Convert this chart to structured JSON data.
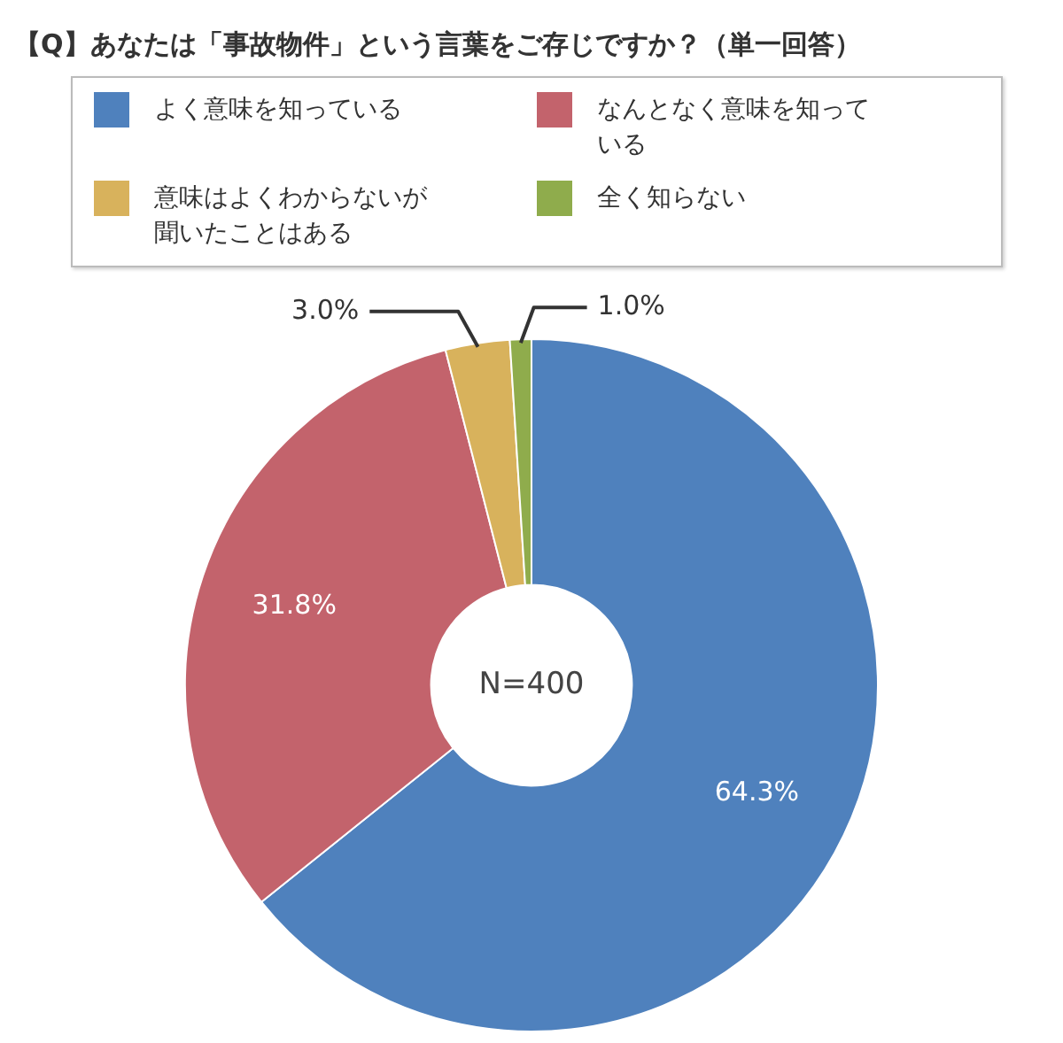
{
  "chart_data": {
    "type": "donut",
    "title": "【Q】あなたは「事故物件」という言葉をご存じですか？（単一回答）",
    "categories": [
      "よく意味を知っている",
      "なんとなく意味を知っている",
      "意味はよくわからないが聞いたことはある",
      "全く知らない"
    ],
    "values": [
      64.3,
      31.8,
      3.0,
      1.0
    ],
    "colors": [
      "#4f81bd",
      "#c3636c",
      "#d8b25c",
      "#8fac4c"
    ],
    "value_labels": [
      "64.3%",
      "31.8%",
      "3.0%",
      "1.0%"
    ],
    "annotations": [
      "N=400"
    ],
    "legend": "top"
  }
}
